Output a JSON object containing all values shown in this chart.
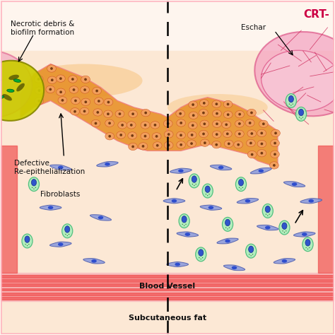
{
  "bg_color": "#fef5ee",
  "border_color": "#ffb6c1",
  "title_text": "CRT-",
  "title_color": "#cc0044",
  "title_fontsize": 11,
  "skin_orange_light": "#f5b87a",
  "skin_orange": "#e8922a",
  "skin_dark_orange": "#d4722a",
  "skin_pink_border": "#f08080",
  "dermis_color": "#fce8d5",
  "blood_vessel_red": "#f05050",
  "blood_vessel_light": "#f88080",
  "blood_vessel_bg": "#f8c0c0",
  "fibroblast_fill": "#8899dd",
  "fibroblast_edge": "#4455aa",
  "oval_cell_fill": "#aaeebb",
  "oval_cell_edge": "#44bb77",
  "nucleus_blue": "#2244cc",
  "nucleus_blue_dark": "#112288",
  "necrotic_yellow": "#cccc00",
  "necrotic_dark": "#888800",
  "necrotic_pink_border": "#dd88aa",
  "bacteria_green": "#00aa33",
  "eschar_pink_fill": "#f4a0c0",
  "eschar_pink_edge": "#dd5588",
  "eschar_inner_pink": "#f8c8d8",
  "fiber_red": "#cc2255",
  "label_fontsize": 7.5,
  "label_color": "#111111",
  "labels": {
    "necrotic": "Necrotic debris &\nbiofilm formation",
    "defective": "Defective\nRe-epithelialization",
    "fibroblasts": "Fibroblasts",
    "blood_vessel": "Blood Vessel",
    "subcut": "Subcutaneous fat",
    "eschar": "Eschar"
  }
}
